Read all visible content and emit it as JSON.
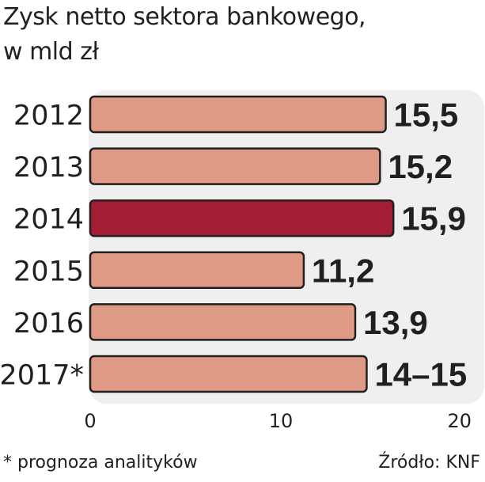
{
  "title_line1": "Zysk netto sektora bankowego,",
  "title_line2": "w mld zł",
  "footnote": "* prognoza analityków",
  "source": "Źródło: KNF",
  "colors": {
    "bar": "#de9a85",
    "highlight": "#a31e33",
    "panel": "#efefef"
  },
  "chart_data": {
    "type": "bar",
    "orientation": "horizontal",
    "categories": [
      "2012",
      "2013",
      "2014",
      "2015",
      "2016",
      "2017*"
    ],
    "values": [
      15.5,
      15.2,
      15.9,
      11.2,
      13.9,
      14.5
    ],
    "value_labels": [
      "15,5",
      "15,2",
      "15,9",
      "11,2",
      "13,9",
      "14–15"
    ],
    "highlight_index": 2,
    "xlim": [
      0,
      20
    ],
    "x_ticks": [
      0,
      10,
      20
    ],
    "grid": false
  }
}
